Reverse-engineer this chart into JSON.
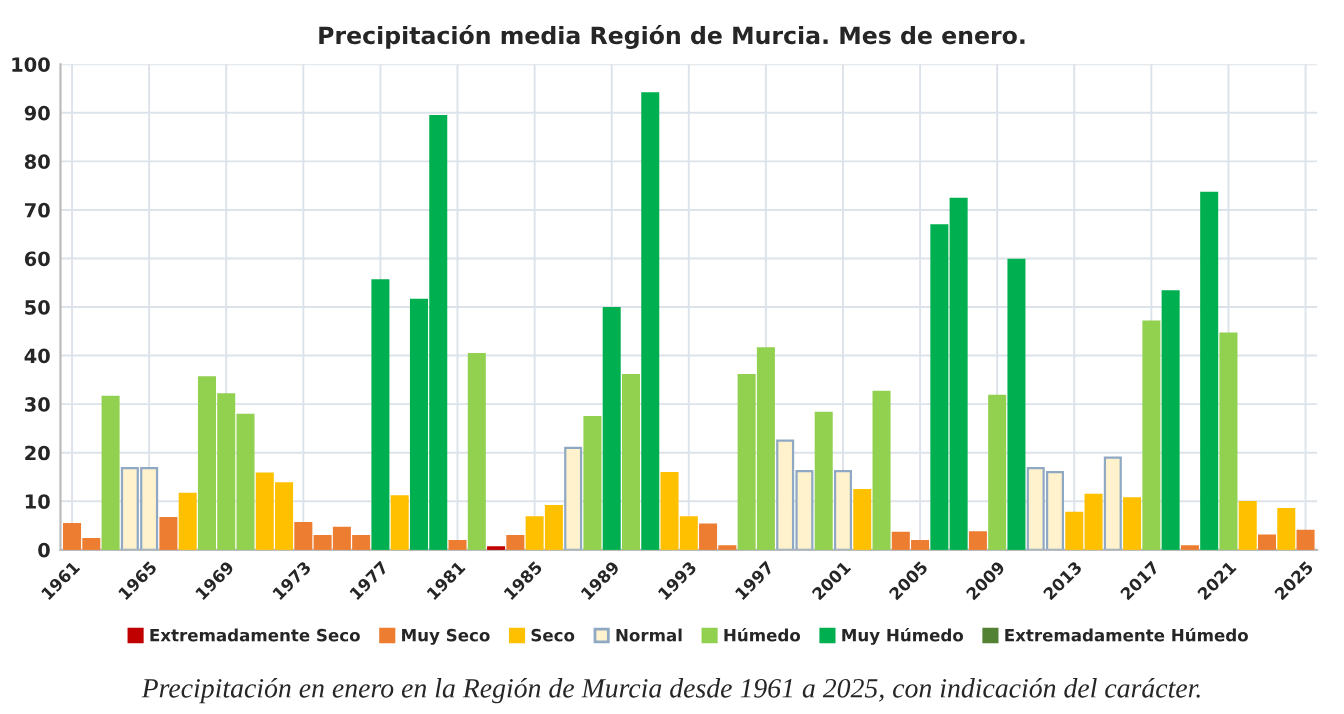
{
  "chart_data": {
    "type": "bar",
    "title": "Precipitación media Región de Murcia. Mes de enero.",
    "categories": [
      "1961",
      null,
      null,
      null,
      "1965",
      null,
      null,
      null,
      "1969",
      null,
      null,
      null,
      "1973",
      null,
      null,
      null,
      "1977",
      null,
      null,
      null,
      "1981",
      null,
      null,
      null,
      "1985",
      null,
      null,
      null,
      "1989",
      null,
      null,
      null,
      "1993",
      null,
      null,
      null,
      "1997",
      null,
      null,
      null,
      "2001",
      null,
      null,
      null,
      "2005",
      null,
      null,
      null,
      "2009",
      null,
      null,
      null,
      "2013",
      null,
      null,
      null,
      "2017",
      null,
      null,
      null,
      "2021",
      null,
      null,
      null,
      "2025"
    ],
    "stacked": true,
    "series": [
      {
        "name": "Extremadamente Seco",
        "color": "#c00000",
        "values": [
          null,
          null,
          null,
          null,
          null,
          null,
          null,
          null,
          null,
          null,
          null,
          null,
          null,
          null,
          null,
          null,
          null,
          null,
          null,
          null,
          null,
          null,
          0.5,
          null,
          null,
          null,
          null,
          null,
          null,
          null,
          null,
          null,
          null,
          null,
          null,
          null,
          null,
          null,
          null,
          null,
          null,
          null,
          null,
          null,
          null,
          null,
          null,
          null,
          null,
          null,
          null,
          null,
          null,
          null,
          null,
          null,
          null,
          null,
          null,
          null,
          null,
          null,
          null,
          null,
          null
        ]
      },
      {
        "name": "Muy Seco",
        "color": "#ed7d31",
        "values": [
          5.3,
          2.2,
          null,
          null,
          null,
          6.5,
          null,
          null,
          null,
          null,
          null,
          null,
          5.5,
          2.8,
          4.5,
          2.8,
          null,
          null,
          null,
          null,
          1.8,
          null,
          null,
          2.8,
          null,
          null,
          null,
          null,
          null,
          null,
          null,
          null,
          null,
          5.2,
          0.7,
          null,
          null,
          null,
          null,
          null,
          null,
          null,
          null,
          3.5,
          1.8,
          null,
          null,
          3.6,
          null,
          null,
          null,
          null,
          null,
          null,
          null,
          null,
          null,
          null,
          0.7,
          null,
          null,
          null,
          2.9,
          null,
          3.9
        ]
      },
      {
        "name": "Seco",
        "color": "#ffc000",
        "values": [
          null,
          null,
          null,
          null,
          null,
          null,
          11.5,
          null,
          null,
          null,
          15.7,
          13.7,
          null,
          null,
          null,
          null,
          null,
          11,
          null,
          null,
          null,
          null,
          null,
          null,
          6.7,
          9,
          null,
          null,
          null,
          null,
          null,
          15.8,
          6.7,
          null,
          null,
          null,
          null,
          null,
          null,
          null,
          null,
          12.3,
          null,
          null,
          null,
          null,
          null,
          null,
          null,
          null,
          null,
          null,
          7.6,
          11.3,
          null,
          10.6,
          null,
          null,
          null,
          null,
          null,
          9.8,
          null,
          8.4,
          null
        ]
      },
      {
        "name": "Normal",
        "color": "#fff2cc",
        "values": [
          null,
          null,
          null,
          16.8,
          16.8,
          null,
          null,
          null,
          null,
          null,
          null,
          null,
          null,
          null,
          null,
          null,
          null,
          null,
          null,
          null,
          null,
          null,
          null,
          null,
          null,
          null,
          21,
          null,
          null,
          null,
          null,
          null,
          null,
          null,
          null,
          null,
          null,
          22.5,
          16.2,
          null,
          16.2,
          null,
          null,
          null,
          null,
          null,
          null,
          null,
          null,
          null,
          16.8,
          16,
          null,
          null,
          19,
          null,
          null,
          null,
          null,
          null,
          null,
          null,
          null,
          null,
          null
        ]
      },
      {
        "name": "Húmedo",
        "color": "#92d050",
        "values": [
          null,
          null,
          31.5,
          null,
          null,
          null,
          null,
          35.5,
          32,
          27.8,
          null,
          null,
          null,
          null,
          null,
          null,
          null,
          null,
          null,
          null,
          null,
          40.3,
          null,
          null,
          null,
          null,
          null,
          27.3,
          null,
          36,
          null,
          null,
          null,
          null,
          null,
          36,
          41.5,
          null,
          null,
          28.2,
          null,
          null,
          32.5,
          null,
          null,
          null,
          null,
          null,
          31.7,
          null,
          null,
          null,
          null,
          null,
          null,
          null,
          47,
          null,
          null,
          null,
          44.5,
          null,
          null,
          null,
          null
        ]
      },
      {
        "name": "Muy Húmedo",
        "color": "#00b050",
        "values": [
          null,
          null,
          null,
          null,
          null,
          null,
          null,
          null,
          null,
          null,
          null,
          null,
          null,
          null,
          null,
          null,
          55.5,
          null,
          51.5,
          89.3,
          null,
          null,
          null,
          null,
          null,
          null,
          null,
          null,
          49.8,
          null,
          94,
          null,
          null,
          null,
          null,
          null,
          null,
          null,
          null,
          null,
          null,
          null,
          null,
          null,
          null,
          66.8,
          72.3,
          null,
          null,
          59.7,
          null,
          null,
          null,
          null,
          null,
          null,
          null,
          53.2,
          null,
          73.5,
          null,
          null,
          null,
          null,
          null
        ]
      },
      {
        "name": "Extremadamente Húmedo",
        "color": "#548235",
        "values": [
          null,
          null,
          null,
          null,
          null,
          null,
          null,
          null,
          null,
          null,
          null,
          null,
          null,
          null,
          null,
          null,
          null,
          null,
          null,
          null,
          null,
          null,
          null,
          null,
          null,
          null,
          null,
          null,
          null,
          null,
          null,
          null,
          null,
          null,
          null,
          null,
          null,
          null,
          null,
          null,
          null,
          null,
          null,
          null,
          null,
          null,
          null,
          null,
          null,
          null,
          null,
          null,
          null,
          null,
          null,
          null,
          null,
          null,
          null,
          null,
          null,
          null,
          null,
          null,
          null
        ]
      }
    ],
    "ylim": [
      0,
      100
    ],
    "yticks": [
      0,
      10,
      20,
      30,
      40,
      50,
      60,
      70,
      80,
      90,
      100
    ],
    "grid": true,
    "legend": "bottom",
    "annotations": [
      "Precipitación en enero en la Región de Murcia desde 1961 a 2025, con indicación del carácter."
    ]
  }
}
